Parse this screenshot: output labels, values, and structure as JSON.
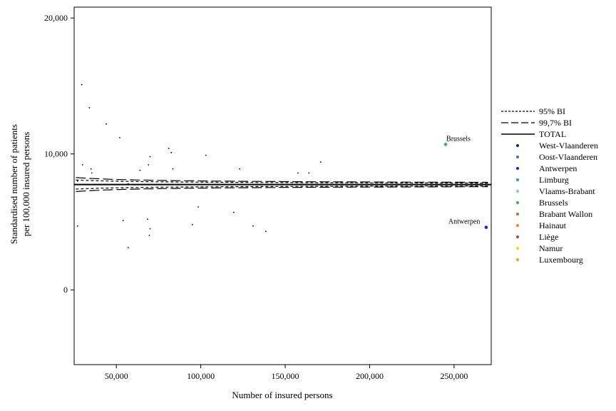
{
  "chart_data": {
    "type": "scatter",
    "title": "",
    "xlabel": "Number of insured persons",
    "ylabel_lines": [
      "Standardised number of patients",
      "per 100,000 insured persons"
    ],
    "xlim": [
      25000,
      272000
    ],
    "ylim": [
      -5500,
      20800
    ],
    "x_ticks": [
      50000,
      100000,
      150000,
      200000,
      250000
    ],
    "x_tick_labels": [
      "50,000",
      "100,000",
      "150,000",
      "200,000",
      "250,000"
    ],
    "y_ticks": [
      0,
      10000,
      20000
    ],
    "y_tick_labels": [
      "0",
      "10,000",
      "20,000"
    ],
    "grid": false,
    "legend_position": "right",
    "total": 7750,
    "lines": [
      {
        "name": "95% BI",
        "style": "short-dash",
        "z": 1.96
      },
      {
        "name": "99,7% BI",
        "style": "long-dash",
        "z": 3.0
      },
      {
        "name": "TOTAL",
        "style": "solid"
      }
    ],
    "regions": [
      {
        "name": "West-Vlaanderen",
        "color": "#0b1f8f"
      },
      {
        "name": "Oost-Vlaanderen",
        "color": "#3b6fd6"
      },
      {
        "name": "Antwerpen",
        "color": "#1a1aff"
      },
      {
        "name": "Limburg",
        "color": "#2e8fd6"
      },
      {
        "name": "Vlaams-Brabant",
        "color": "#7fc6ea"
      },
      {
        "name": "Brussels",
        "color": "#3cb44b"
      },
      {
        "name": "Brabant Wallon",
        "color": "#d2691e"
      },
      {
        "name": "Hainaut",
        "color": "#f58231"
      },
      {
        "name": "Liège",
        "color": "#b5452f"
      },
      {
        "name": "Namur",
        "color": "#ffd400"
      },
      {
        "name": "Luxembourg",
        "color": "#e8a317"
      }
    ],
    "points": [
      {
        "x": 27000,
        "y": 8000
      },
      {
        "x": 27000,
        "y": 4700
      },
      {
        "x": 29500,
        "y": 15100
      },
      {
        "x": 30000,
        "y": 9200
      },
      {
        "x": 34000,
        "y": 13400
      },
      {
        "x": 35000,
        "y": 8900
      },
      {
        "x": 35500,
        "y": 8600
      },
      {
        "x": 44000,
        "y": 12200
      },
      {
        "x": 52000,
        "y": 11200
      },
      {
        "x": 54000,
        "y": 5100
      },
      {
        "x": 57000,
        "y": 3100
      },
      {
        "x": 57000,
        "y": 7800
      },
      {
        "x": 64000,
        "y": 8800
      },
      {
        "x": 68500,
        "y": 5200
      },
      {
        "x": 69000,
        "y": 9200
      },
      {
        "x": 69500,
        "y": 4000
      },
      {
        "x": 70000,
        "y": 4500
      },
      {
        "x": 70000,
        "y": 9800
      },
      {
        "x": 81000,
        "y": 10400
      },
      {
        "x": 82500,
        "y": 10100
      },
      {
        "x": 83500,
        "y": 8900
      },
      {
        "x": 95000,
        "y": 4800
      },
      {
        "x": 98500,
        "y": 6100
      },
      {
        "x": 103000,
        "y": 9900
      },
      {
        "x": 119500,
        "y": 5700
      },
      {
        "x": 123000,
        "y": 8900
      },
      {
        "x": 131000,
        "y": 4700
      },
      {
        "x": 138500,
        "y": 4300
      },
      {
        "x": 157500,
        "y": 8600
      },
      {
        "x": 164000,
        "y": 8600
      },
      {
        "x": 171000,
        "y": 9400
      },
      {
        "x": 245000,
        "y": 10700,
        "region": "Brussels",
        "label": "Brussels"
      },
      {
        "x": 269000,
        "y": 4600,
        "region": "Antwerpen",
        "label": "Antwerpen"
      }
    ]
  }
}
